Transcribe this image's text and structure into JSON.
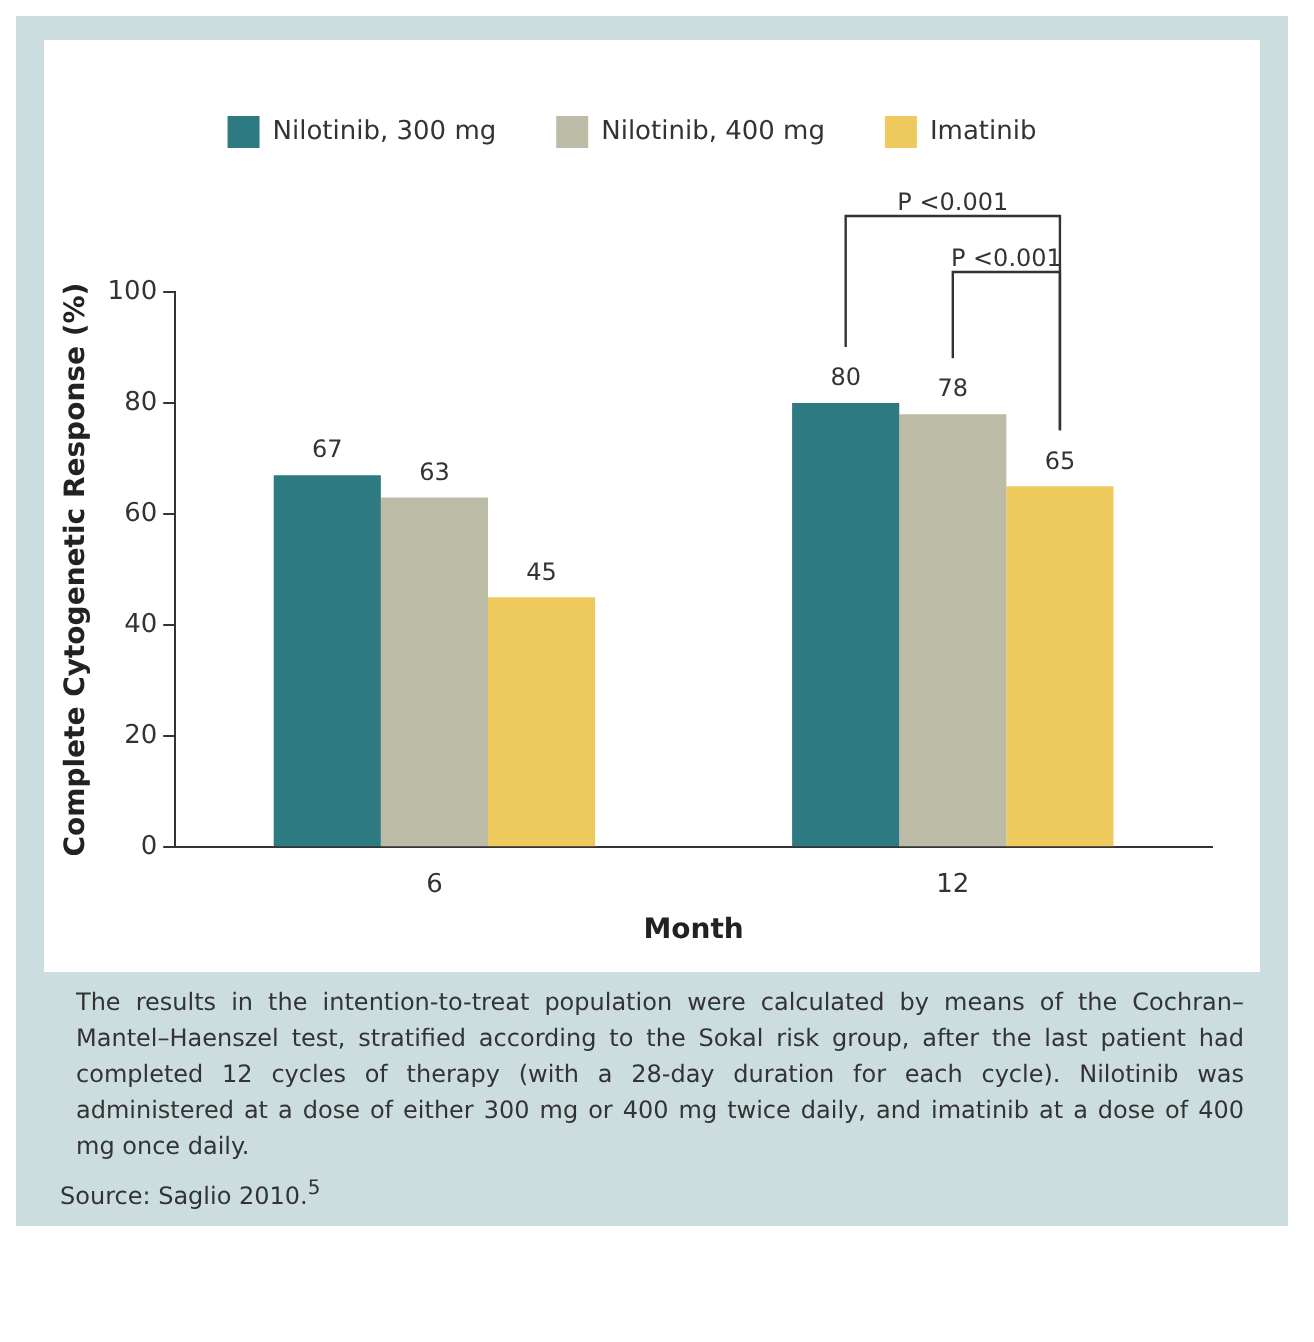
{
  "chart_data": {
    "type": "bar",
    "xlabel": "Month",
    "ylabel": "Complete Cytogenetic Response (%)",
    "categories": [
      "6",
      "12"
    ],
    "series": [
      {
        "name": "Nilotinib, 300 mg",
        "color": "#2e7a82",
        "values": [
          67,
          80
        ]
      },
      {
        "name": "Nilotinib, 400 mg",
        "color": "#bcbca6",
        "values": [
          63,
          78
        ]
      },
      {
        "name": "Imatinib",
        "color": "#eeca5e",
        "values": [
          45,
          65
        ]
      }
    ],
    "ylim": [
      0,
      100
    ],
    "yticks": [
      0,
      20,
      40,
      60,
      80,
      100
    ],
    "grid": false,
    "legend": "top",
    "data_labels": true,
    "annotations": [
      "P <0.001",
      "P <0.001",
      "The results in the intention-to-treat population were calculated by means of the Cochran–Mantel–Haenszel test, stratified according to the Sokal risk group, after the last patient had completed 12 cycles of therapy (with a 28-day duration for each cycle). Nilotinib was administered at a dose of either 300 mg or 400 mg twice daily, and imatinib at a dose of 400 mg once daily.",
      "Source: Saglio 2010.$^{5}$"
    ]
  }
}
